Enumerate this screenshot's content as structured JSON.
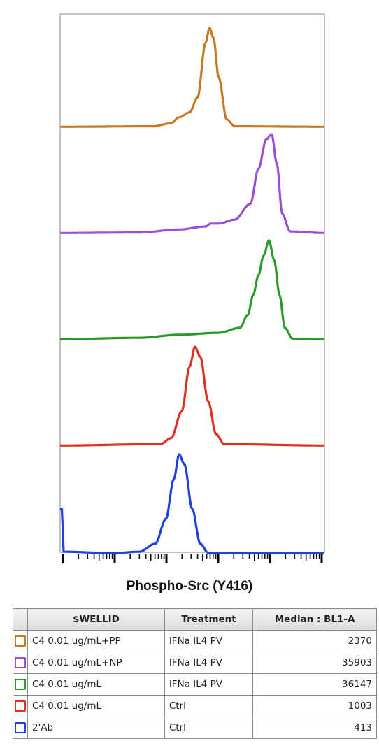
{
  "chart_data": {
    "type": "line",
    "layout": "stacked-histogram-overlay",
    "xlabel": "Phospho-Src (Y416)",
    "xscale": "log",
    "series": [
      {
        "color": "#c87a20",
        "peak_position": 0.56,
        "shape": [
          [
            0,
            0.005
          ],
          [
            0.35,
            0.01
          ],
          [
            0.42,
            0.04
          ],
          [
            0.45,
            0.1
          ],
          [
            0.49,
            0.15
          ],
          [
            0.52,
            0.3
          ],
          [
            0.55,
            0.85
          ],
          [
            0.565,
            1.0
          ],
          [
            0.58,
            0.9
          ],
          [
            0.6,
            0.5
          ],
          [
            0.63,
            0.08
          ],
          [
            0.66,
            0.01
          ],
          [
            1,
            0.005
          ]
        ]
      },
      {
        "color": "#9b4fd6",
        "peak_position": 0.79,
        "shape": [
          [
            0,
            0.005
          ],
          [
            0.3,
            0.01
          ],
          [
            0.45,
            0.04
          ],
          [
            0.55,
            0.07
          ],
          [
            0.57,
            0.1
          ],
          [
            0.6,
            0.1
          ],
          [
            0.66,
            0.14
          ],
          [
            0.72,
            0.3
          ],
          [
            0.75,
            0.65
          ],
          [
            0.78,
            0.95
          ],
          [
            0.8,
            1.0
          ],
          [
            0.82,
            0.7
          ],
          [
            0.84,
            0.2
          ],
          [
            0.87,
            0.02
          ],
          [
            1,
            0.005
          ]
        ]
      },
      {
        "color": "#2a9a2a",
        "peak_position": 0.79,
        "shape": [
          [
            0,
            0.005
          ],
          [
            0.3,
            0.02
          ],
          [
            0.45,
            0.05
          ],
          [
            0.6,
            0.07
          ],
          [
            0.68,
            0.12
          ],
          [
            0.71,
            0.25
          ],
          [
            0.73,
            0.45
          ],
          [
            0.75,
            0.65
          ],
          [
            0.77,
            0.85
          ],
          [
            0.79,
            1.0
          ],
          [
            0.81,
            0.8
          ],
          [
            0.83,
            0.45
          ],
          [
            0.85,
            0.12
          ],
          [
            0.88,
            0.01
          ],
          [
            1,
            0.005
          ]
        ]
      },
      {
        "color": "#e03020",
        "peak_position": 0.52,
        "shape": [
          [
            0,
            0.005
          ],
          [
            0.38,
            0.02
          ],
          [
            0.42,
            0.08
          ],
          [
            0.46,
            0.35
          ],
          [
            0.49,
            0.8
          ],
          [
            0.51,
            1.0
          ],
          [
            0.53,
            0.9
          ],
          [
            0.56,
            0.45
          ],
          [
            0.59,
            0.12
          ],
          [
            0.62,
            0.02
          ],
          [
            1,
            0.005
          ]
        ]
      },
      {
        "color": "#2040e0",
        "peak_position": 0.45,
        "shape": [
          [
            0,
            0.45
          ],
          [
            0.008,
            0.45
          ],
          [
            0.012,
            0.02
          ],
          [
            0.2,
            0.005
          ],
          [
            0.3,
            0.02
          ],
          [
            0.36,
            0.1
          ],
          [
            0.4,
            0.35
          ],
          [
            0.43,
            0.75
          ],
          [
            0.45,
            1.0
          ],
          [
            0.47,
            0.9
          ],
          [
            0.5,
            0.45
          ],
          [
            0.53,
            0.1
          ],
          [
            0.56,
            0.01
          ],
          [
            1,
            0.005
          ]
        ]
      }
    ],
    "legend_table": {
      "columns": [
        "$WELLID",
        "Treatment",
        "Median : BL1-A"
      ],
      "rows": [
        {
          "color": "#c87a20",
          "wellid": "C4 0.01 ug/mL+PP",
          "treatment": "IFNa IL4 PV",
          "median": "2370"
        },
        {
          "color": "#9b4fd6",
          "wellid": "C4 0.01 ug/mL+NP",
          "treatment": "IFNa IL4 PV",
          "median": "35903"
        },
        {
          "color": "#2a9a2a",
          "wellid": "C4 0.01 ug/mL",
          "treatment": "IFNa IL4 PV",
          "median": "36147"
        },
        {
          "color": "#e03020",
          "wellid": "C4 0.01 ug/mL",
          "treatment": "Ctrl",
          "median": "1003"
        },
        {
          "color": "#2040e0",
          "wellid": "2'Ab",
          "treatment": "Ctrl",
          "median": "413"
        }
      ]
    }
  }
}
